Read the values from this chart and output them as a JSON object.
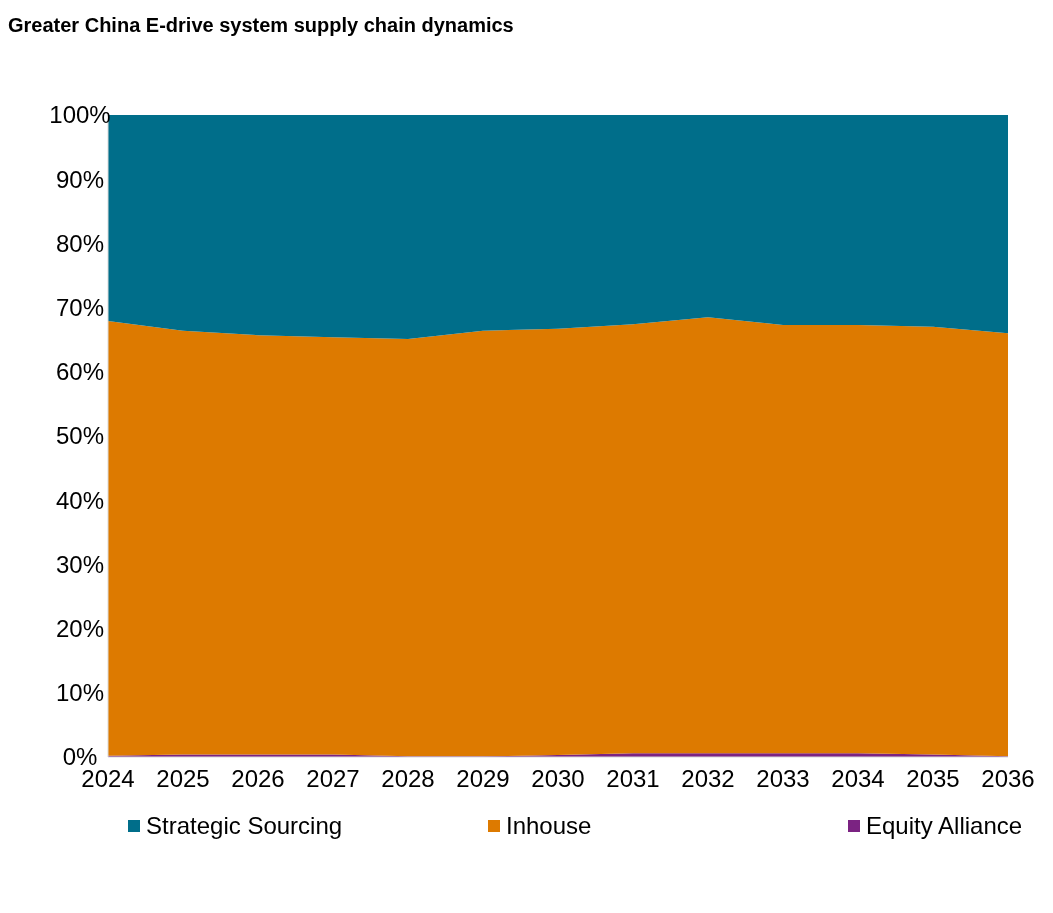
{
  "chart_data": {
    "type": "area",
    "stacked": true,
    "title": "Greater China E-drive system supply chain dynamics",
    "categories": [
      "2024",
      "2025",
      "2026",
      "2027",
      "2028",
      "2029",
      "2030",
      "2031",
      "2032",
      "2033",
      "2034",
      "2035",
      "2036"
    ],
    "series": [
      {
        "name": "Equity Alliance",
        "color": "#7b2382",
        "values": [
          0.2,
          0.4,
          0.4,
          0.4,
          0.1,
          0.1,
          0.3,
          0.6,
          0.6,
          0.6,
          0.6,
          0.4,
          0.1
        ]
      },
      {
        "name": "Inhouse",
        "color": "#dd7a00",
        "values": [
          67.7,
          66.0,
          65.3,
          65.0,
          65.0,
          66.3,
          66.4,
          66.8,
          67.9,
          66.7,
          66.7,
          66.6,
          65.9
        ]
      },
      {
        "name": "Strategic Sourcing",
        "color": "#006e8a",
        "values": [
          32.1,
          33.6,
          34.3,
          34.6,
          34.9,
          33.6,
          33.3,
          32.6,
          31.5,
          32.7,
          32.7,
          33.0,
          34.0
        ]
      }
    ],
    "ylim": [
      0,
      100
    ],
    "yticks": [
      {
        "value": 0,
        "label": "0%"
      },
      {
        "value": 10,
        "label": "10%"
      },
      {
        "value": 20,
        "label": "20%"
      },
      {
        "value": 30,
        "label": "30%"
      },
      {
        "value": 40,
        "label": "40%"
      },
      {
        "value": 50,
        "label": "50%"
      },
      {
        "value": 60,
        "label": "60%"
      },
      {
        "value": 70,
        "label": "70%"
      },
      {
        "value": 80,
        "label": "80%"
      },
      {
        "value": 90,
        "label": "90%"
      },
      {
        "value": 100,
        "label": "100%"
      }
    ],
    "legend": "bottom"
  }
}
